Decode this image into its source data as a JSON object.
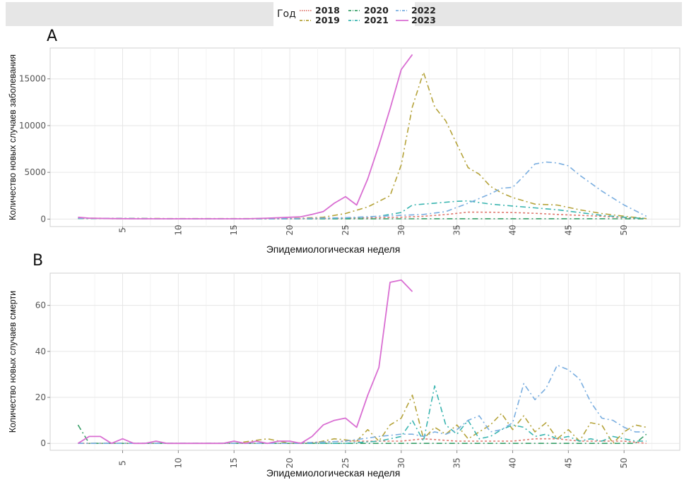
{
  "legend": {
    "title": "Год",
    "items": [
      {
        "label": "2018",
        "color": "#e0786f",
        "dash": "3,3"
      },
      {
        "label": "2019",
        "color": "#b5a33a",
        "dash": "8,4,2,4"
      },
      {
        "label": "2020",
        "color": "#3aa06a",
        "dash": "8,4,2,4"
      },
      {
        "label": "2021",
        "color": "#3ab5b0",
        "dash": "8,4,2,4"
      },
      {
        "label": "2022",
        "color": "#7aaee0",
        "dash": "8,4,2,4"
      },
      {
        "label": "2023",
        "color": "#d96ed2",
        "dash": ""
      }
    ]
  },
  "chart_data": [
    {
      "panel": "A",
      "type": "line",
      "xlabel": "Эпидемиологическая неделя",
      "ylabel": "Количество новых случаев заболевания",
      "xticks": [
        5,
        10,
        15,
        20,
        25,
        30,
        35,
        40,
        45,
        50
      ],
      "yticks": [
        0,
        5000,
        10000,
        15000
      ],
      "xlim": [
        -1.5,
        55
      ],
      "ylim": [
        -800,
        18300
      ],
      "grid": true,
      "series": [
        {
          "name": "2018",
          "x": [
            1,
            10,
            20,
            25,
            28,
            30,
            32,
            34,
            36,
            38,
            40,
            42,
            44,
            46,
            48,
            50,
            52
          ],
          "y": [
            80,
            40,
            40,
            90,
            150,
            200,
            300,
            480,
            750,
            730,
            700,
            620,
            500,
            400,
            300,
            150,
            50
          ]
        },
        {
          "name": "2019",
          "x": [
            1,
            10,
            20,
            23,
            25,
            27,
            29,
            30,
            31,
            32,
            33,
            34,
            35,
            36,
            37,
            38,
            39,
            40,
            42,
            44,
            46,
            48,
            50,
            52
          ],
          "y": [
            100,
            50,
            50,
            200,
            600,
            1300,
            2500,
            5800,
            12000,
            15700,
            12000,
            10500,
            8000,
            5500,
            4800,
            3500,
            2800,
            2300,
            1600,
            1500,
            1000,
            600,
            300,
            50
          ]
        },
        {
          "name": "2020",
          "x": [
            1,
            10,
            20,
            30,
            40,
            50,
            52
          ],
          "y": [
            60,
            20,
            20,
            30,
            40,
            30,
            20
          ]
        },
        {
          "name": "2021",
          "x": [
            1,
            10,
            20,
            25,
            28,
            30,
            31,
            33,
            35,
            36,
            38,
            40,
            42,
            44,
            46,
            48,
            50,
            52
          ],
          "y": [
            80,
            40,
            40,
            100,
            300,
            700,
            1500,
            1700,
            1900,
            1950,
            1600,
            1400,
            1200,
            1000,
            700,
            400,
            200,
            50
          ]
        },
        {
          "name": "2022",
          "x": [
            1,
            10,
            20,
            25,
            28,
            30,
            32,
            34,
            36,
            38,
            39,
            40,
            41,
            42,
            43,
            44,
            45,
            46,
            48,
            50,
            52
          ],
          "y": [
            80,
            40,
            40,
            150,
            300,
            400,
            500,
            800,
            1700,
            2700,
            3300,
            3400,
            4600,
            5900,
            6100,
            6000,
            5700,
            4700,
            3000,
            1500,
            300
          ]
        },
        {
          "name": "2023",
          "x": [
            1,
            2,
            4,
            6,
            8,
            10,
            12,
            14,
            16,
            18,
            20,
            21,
            22,
            23,
            24,
            25,
            26,
            27,
            28,
            29,
            30,
            31
          ],
          "y": [
            200,
            100,
            50,
            30,
            30,
            30,
            30,
            30,
            30,
            100,
            200,
            250,
            500,
            800,
            1700,
            2400,
            1500,
            4300,
            7900,
            11800,
            16000,
            17600
          ]
        }
      ]
    },
    {
      "panel": "B",
      "type": "line",
      "xlabel": "Эпидемиологическая неделя",
      "ylabel": "Количество новых случаев смерти",
      "xticks": [
        5,
        10,
        15,
        20,
        25,
        30,
        35,
        40,
        45,
        50
      ],
      "yticks": [
        0,
        20,
        40,
        60
      ],
      "xlim": [
        -1.5,
        55
      ],
      "ylim": [
        -3,
        74
      ],
      "grid": true,
      "series": [
        {
          "name": "2018",
          "x": [
            1,
            5,
            10,
            15,
            20,
            25,
            30,
            32,
            35,
            38,
            40,
            42,
            44,
            46,
            48,
            50,
            52
          ],
          "y": [
            0,
            0,
            0,
            0,
            0,
            1,
            1,
            2,
            1,
            1,
            1,
            2,
            2,
            1,
            1,
            1,
            0
          ]
        },
        {
          "name": "2019",
          "x": [
            1,
            5,
            10,
            15,
            18,
            20,
            22,
            24,
            26,
            27,
            28,
            29,
            30,
            31,
            32,
            33,
            34,
            35,
            36,
            37,
            38,
            39,
            40,
            41,
            42,
            43,
            44,
            45,
            46,
            47,
            48,
            49,
            50,
            51,
            52
          ],
          "y": [
            0,
            0,
            0,
            0,
            2,
            0,
            0,
            2,
            1,
            6,
            1,
            8,
            11,
            21,
            2,
            7,
            4,
            8,
            2,
            5,
            8,
            13,
            6,
            12,
            5,
            9,
            2,
            6,
            1,
            9,
            8,
            0,
            5,
            8,
            7
          ]
        },
        {
          "name": "2020",
          "x": [
            1,
            2,
            5,
            10,
            15,
            20,
            25,
            30,
            35,
            40,
            45,
            50,
            51,
            52
          ],
          "y": [
            8,
            0,
            0,
            0,
            0,
            0,
            0,
            0,
            0,
            0,
            0,
            0,
            0,
            4
          ]
        },
        {
          "name": "2021",
          "x": [
            1,
            5,
            10,
            15,
            20,
            25,
            28,
            30,
            31,
            32,
            33,
            34,
            35,
            36,
            37,
            38,
            39,
            40,
            41,
            42,
            43,
            44,
            45,
            46,
            47,
            48,
            49,
            50,
            51,
            52
          ],
          "y": [
            0,
            0,
            0,
            0,
            0,
            0,
            1,
            3,
            10,
            1,
            25,
            8,
            4,
            10,
            2,
            3,
            6,
            8,
            7,
            3,
            4,
            2,
            3,
            1,
            2,
            1,
            3,
            2,
            1,
            1
          ]
        },
        {
          "name": "2022",
          "x": [
            1,
            5,
            10,
            15,
            20,
            25,
            28,
            30,
            31,
            32,
            33,
            34,
            35,
            36,
            37,
            38,
            39,
            40,
            41,
            42,
            43,
            44,
            45,
            46,
            47,
            48,
            49,
            50,
            51,
            52
          ],
          "y": [
            0,
            0,
            0,
            0,
            0,
            1,
            3,
            4,
            4,
            3,
            5,
            4,
            6,
            10,
            12,
            5,
            6,
            9,
            26,
            19,
            24,
            34,
            32,
            28,
            18,
            11,
            10,
            7,
            5,
            5
          ]
        },
        {
          "name": "2023",
          "x": [
            1,
            2,
            3,
            4,
            5,
            6,
            7,
            8,
            9,
            10,
            12,
            14,
            15,
            16,
            17,
            18,
            19,
            20,
            21,
            22,
            23,
            24,
            25,
            26,
            27,
            28,
            29,
            30,
            31
          ],
          "y": [
            0,
            3,
            3,
            0,
            2,
            0,
            0,
            1,
            0,
            0,
            0,
            0,
            1,
            0,
            1,
            0,
            1,
            1,
            0,
            3,
            8,
            10,
            11,
            7,
            21,
            33,
            70,
            71,
            66
          ]
        }
      ]
    }
  ]
}
